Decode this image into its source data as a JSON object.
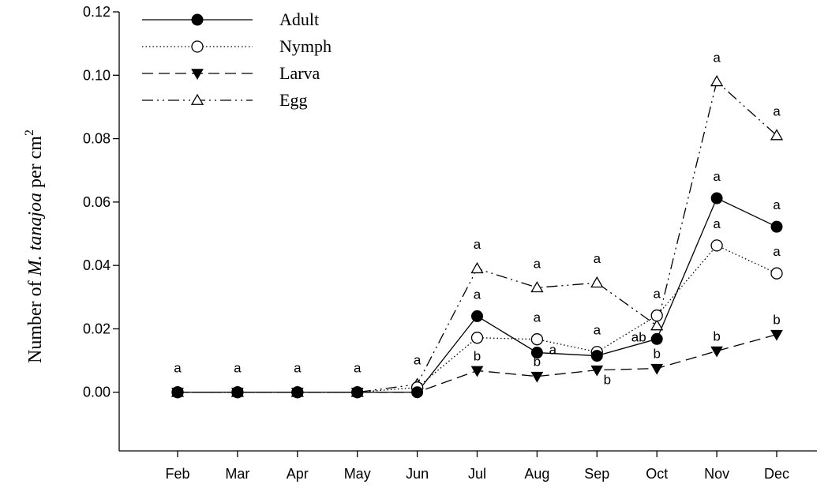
{
  "chart_data": {
    "type": "line",
    "title": "",
    "xlabel": "",
    "ylabel": {
      "prefix": "Number of ",
      "italic": "M. tanajoa",
      "suffix": " per cm",
      "superscript": "2"
    },
    "categories": [
      "Feb",
      "Mar",
      "Apr",
      "May",
      "Jun",
      "Jul",
      "Aug",
      "Sep",
      "Oct",
      "Nov",
      "Dec"
    ],
    "ylim": [
      -0.0185,
      0.12
    ],
    "yticks": [
      "0.00",
      "0.02",
      "0.04",
      "0.06",
      "0.08",
      "0.10",
      "0.12"
    ],
    "ytick_values": [
      0,
      0.02,
      0.04,
      0.06,
      0.08,
      0.1,
      0.12
    ],
    "grid": false,
    "legend_position": "top-left",
    "series": [
      {
        "name": "Adult",
        "marker": "filled-circle",
        "line_style": "solid",
        "values": [
          0,
          0,
          0,
          0,
          0,
          0.024,
          0.0125,
          0.0115,
          0.0168,
          0.0612,
          0.0522
        ],
        "labels": [
          "",
          "",
          "",
          "",
          "",
          "a",
          "a",
          "",
          "ab",
          "a",
          "a"
        ]
      },
      {
        "name": "Nymph",
        "marker": "open-circle",
        "line_style": "dotted",
        "values": [
          0,
          0,
          0,
          0,
          0.0015,
          0.0172,
          0.0167,
          0.0127,
          0.0242,
          0.0463,
          0.0375
        ],
        "labels": [
          "",
          "",
          "",
          "",
          "",
          "a",
          "a",
          "a",
          "a",
          "a",
          "a"
        ]
      },
      {
        "name": "Larva",
        "marker": "filled-triangle-down",
        "line_style": "dashed",
        "values": [
          0,
          0,
          0,
          0,
          0,
          0.0068,
          0.005,
          0.007,
          0.0075,
          0.013,
          0.0182
        ],
        "labels": [
          "",
          "",
          "",
          "",
          "",
          "b",
          "b",
          "b",
          "b",
          "b",
          "b"
        ]
      },
      {
        "name": "Egg",
        "marker": "open-triangle-up",
        "line_style": "dash-dot-dot",
        "values": [
          0,
          0,
          0,
          0,
          0.0025,
          0.039,
          0.033,
          0.0345,
          0.021,
          0.098,
          0.081
        ],
        "labels": [
          "a",
          "a",
          "a",
          "a",
          "a",
          "a",
          "a",
          "a",
          "",
          "a",
          "a"
        ]
      }
    ]
  }
}
